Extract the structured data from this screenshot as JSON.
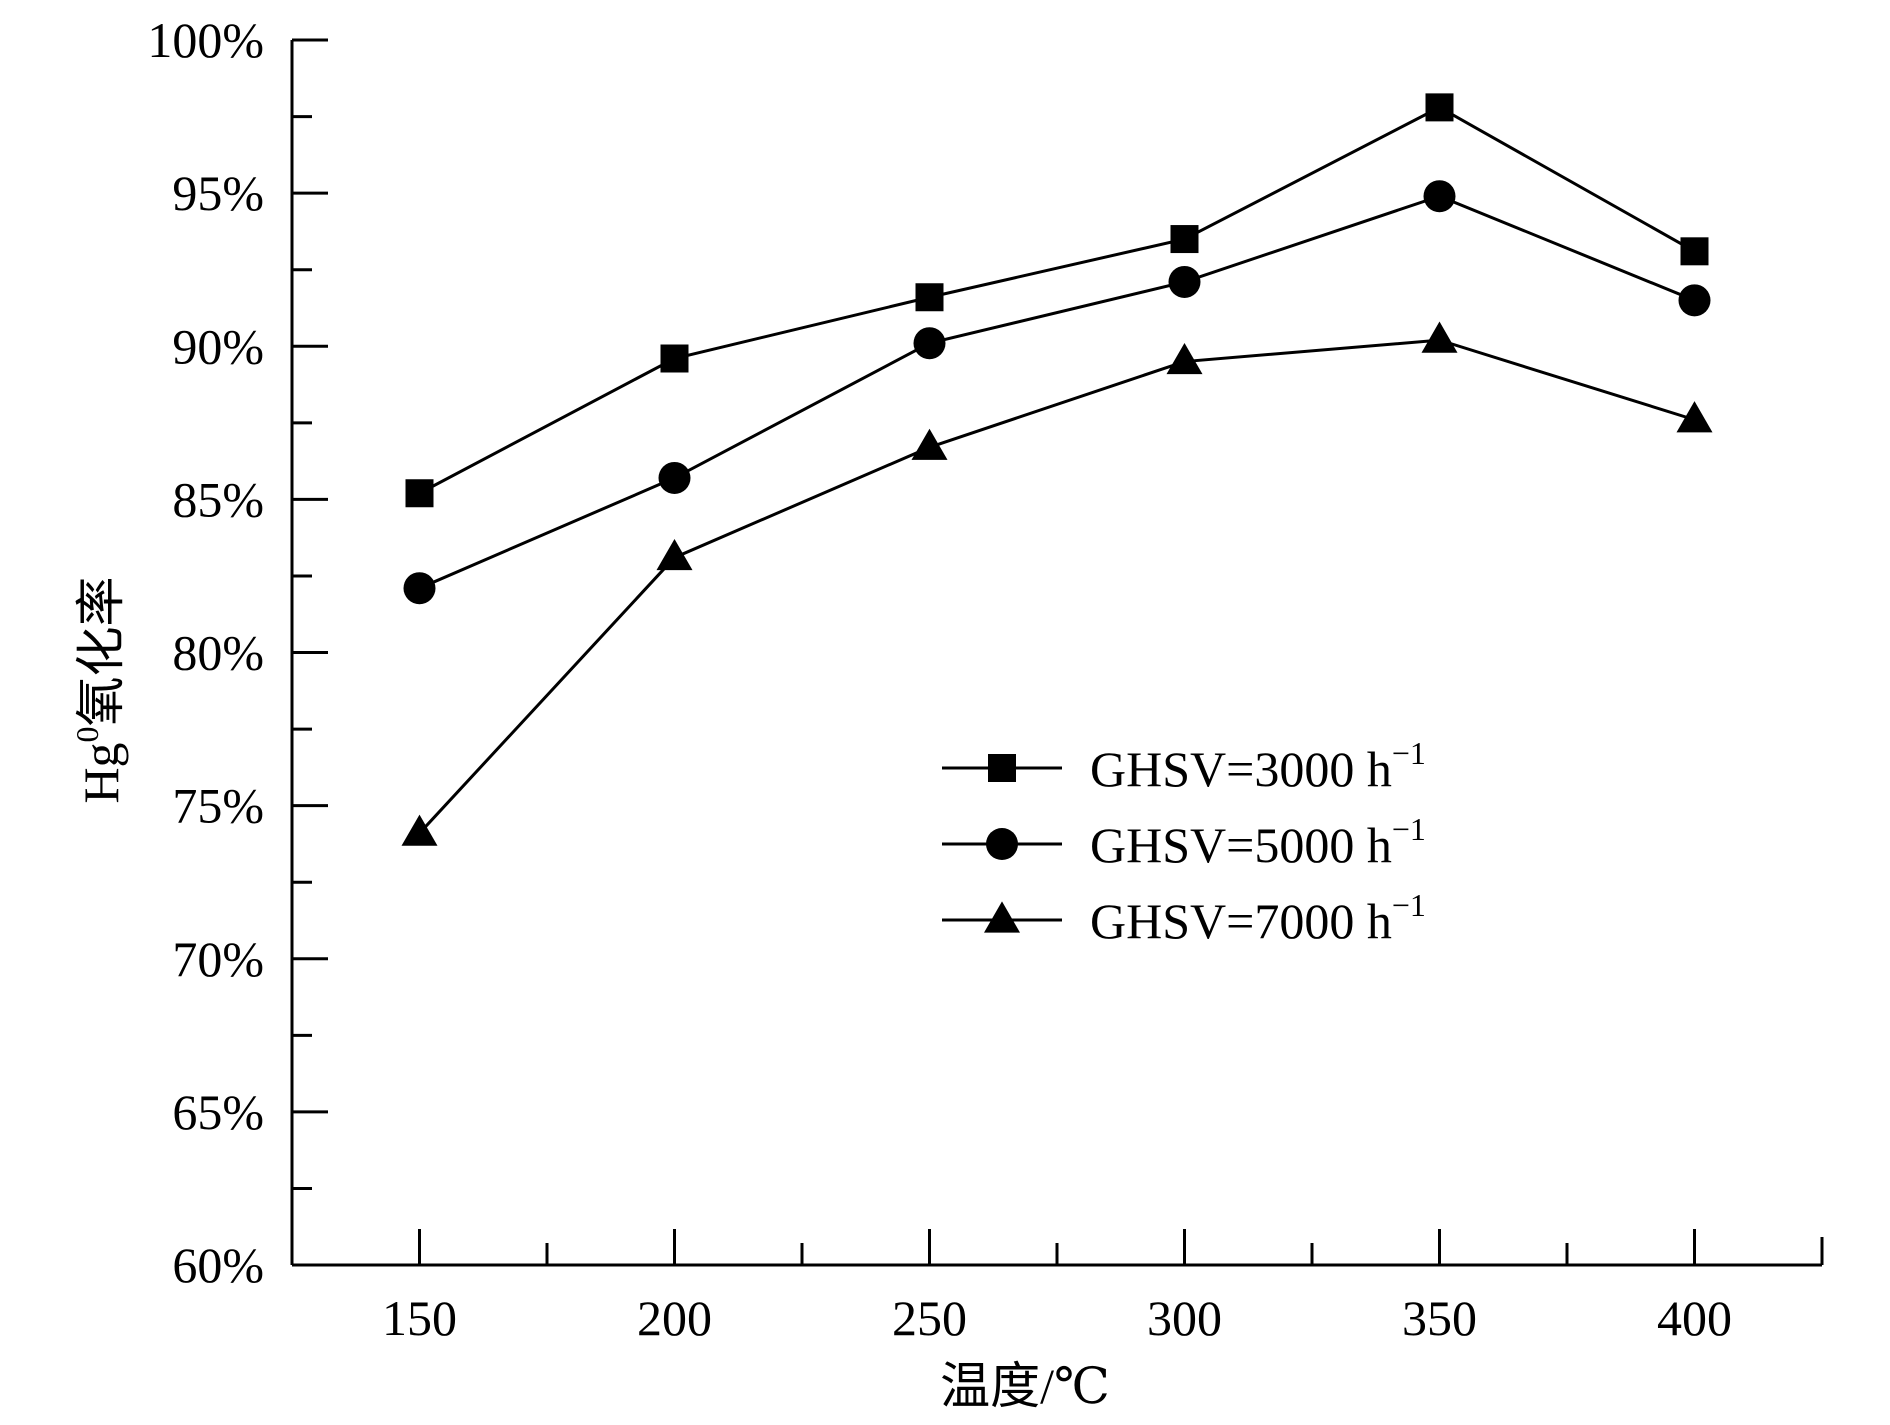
{
  "chart_data": {
    "type": "line",
    "title": "",
    "xlabel": "温度/℃",
    "ylabel": {
      "prefix": "Hg",
      "sup": "0",
      "suffix": "氧化率"
    },
    "x": [
      150,
      200,
      250,
      300,
      350,
      400
    ],
    "xlim": [
      125,
      425
    ],
    "xticks": [
      150,
      200,
      250,
      300,
      350,
      400
    ],
    "x_minor_ticks": [
      175,
      225,
      275,
      325,
      375
    ],
    "ylim": [
      60,
      100
    ],
    "yticks": [
      60,
      65,
      70,
      75,
      80,
      85,
      90,
      95,
      100
    ],
    "ytick_labels": [
      "60%",
      "65%",
      "70%",
      "75%",
      "80%",
      "85%",
      "90%",
      "95%",
      "100%"
    ],
    "y_minor_ticks": [
      62.5,
      67.5,
      72.5,
      77.5,
      82.5,
      87.5,
      92.5,
      97.5
    ],
    "grid": false,
    "legend_position": "center-right",
    "series": [
      {
        "name": "GHSV=3000 h",
        "sup": "−1",
        "marker": "square",
        "values": [
          85.2,
          89.6,
          91.6,
          93.5,
          97.8,
          93.1
        ]
      },
      {
        "name": "GHSV=5000 h",
        "sup": "−1",
        "marker": "circle",
        "values": [
          82.1,
          85.7,
          90.1,
          92.1,
          94.9,
          91.5
        ]
      },
      {
        "name": "GHSV=7000 h",
        "sup": "−1",
        "marker": "triangle",
        "values": [
          74.1,
          83.1,
          86.7,
          89.5,
          90.2,
          87.6
        ]
      }
    ],
    "color": "#000000"
  }
}
